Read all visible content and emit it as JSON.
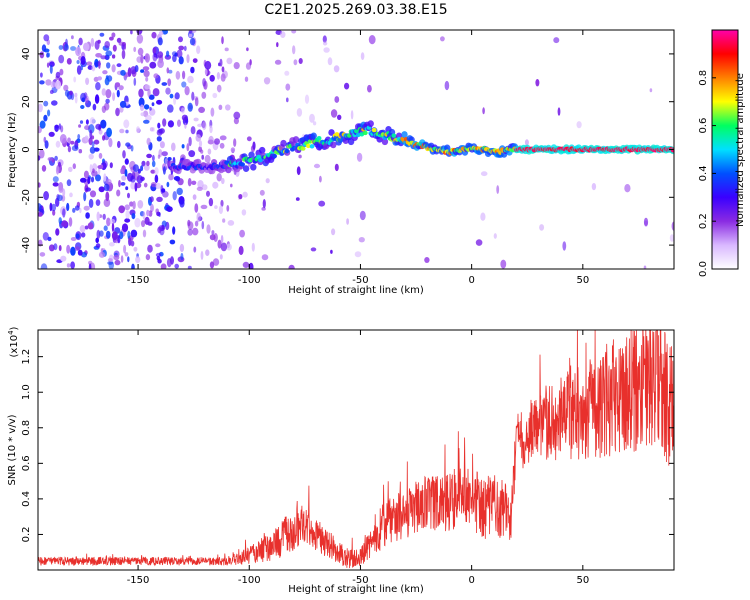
{
  "title": "C2E1.2025.269.03.38.E15",
  "chart_data": [
    {
      "type": "heatmap",
      "xlabel": "Height of straight line (km)",
      "ylabel": "Frequency (Hz)",
      "xlim": [
        -195,
        91
      ],
      "ylim": [
        -50,
        50
      ],
      "x_ticks": [
        -150,
        -100,
        -50,
        0,
        50
      ],
      "y_ticks": [
        -40,
        -20,
        0,
        20,
        40
      ],
      "colorbar": {
        "label": "Normalized spectral amplitude",
        "range": [
          0,
          1
        ],
        "ticks": [
          0.0,
          0.2,
          0.4,
          0.6,
          0.8
        ],
        "colormap": [
          "#ffffff",
          "#d9b8ff",
          "#8a2be2",
          "#3a00ff",
          "#0050ff",
          "#00e0ff",
          "#00ff60",
          "#ffff00",
          "#ff8000",
          "#ff0000",
          "#ff00aa"
        ]
      },
      "ridge": {
        "x": [
          -130,
          -115,
          -100,
          -90,
          -80,
          -70,
          -60,
          -50,
          -45,
          -40,
          -35,
          -30,
          -25,
          -20,
          -15,
          -10,
          -5,
          0,
          5,
          10,
          20,
          40,
          60,
          91
        ],
        "frequency": [
          -7,
          -7,
          -5,
          -2,
          1,
          3,
          5,
          7,
          8,
          6,
          5,
          4,
          2,
          1,
          0,
          -1,
          0,
          0,
          0,
          -1,
          0,
          0,
          0,
          0
        ]
      }
    },
    {
      "type": "line",
      "xlabel": "Height of straight line (km)",
      "ylabel": "SNR (10 * v/v)",
      "scale_label": "(x10",
      "scale_exp": "4",
      "xlim": [
        -195,
        91
      ],
      "ylim": [
        0,
        1.35
      ],
      "x_ticks": [
        -150,
        -100,
        -50,
        0,
        50
      ],
      "y_ticks": [
        0.2,
        0.4,
        0.6,
        0.8,
        1.0,
        1.2
      ],
      "color": "#e8302c",
      "envelope": {
        "x": [
          -195,
          -110,
          -100,
          -90,
          -80,
          -75,
          -70,
          -60,
          -55,
          -50,
          -45,
          -40,
          -30,
          -20,
          -10,
          -5,
          0,
          5,
          10,
          15,
          18,
          20,
          25,
          30,
          40,
          50,
          60,
          70,
          80,
          91
        ],
        "y": [
          0.05,
          0.05,
          0.08,
          0.14,
          0.22,
          0.26,
          0.2,
          0.1,
          0.06,
          0.07,
          0.15,
          0.25,
          0.32,
          0.38,
          0.36,
          0.45,
          0.4,
          0.35,
          0.36,
          0.34,
          0.3,
          0.72,
          0.75,
          0.82,
          0.85,
          0.9,
          0.95,
          1.0,
          1.05,
          0.95
        ]
      },
      "noise_amplitude": {
        "x": [
          -195,
          -110,
          -100,
          -80,
          -60,
          -50,
          -40,
          -20,
          0,
          20,
          40,
          60,
          91
        ],
        "y": [
          0.015,
          0.015,
          0.03,
          0.08,
          0.04,
          0.03,
          0.08,
          0.1,
          0.12,
          0.1,
          0.15,
          0.2,
          0.25
        ]
      }
    }
  ]
}
